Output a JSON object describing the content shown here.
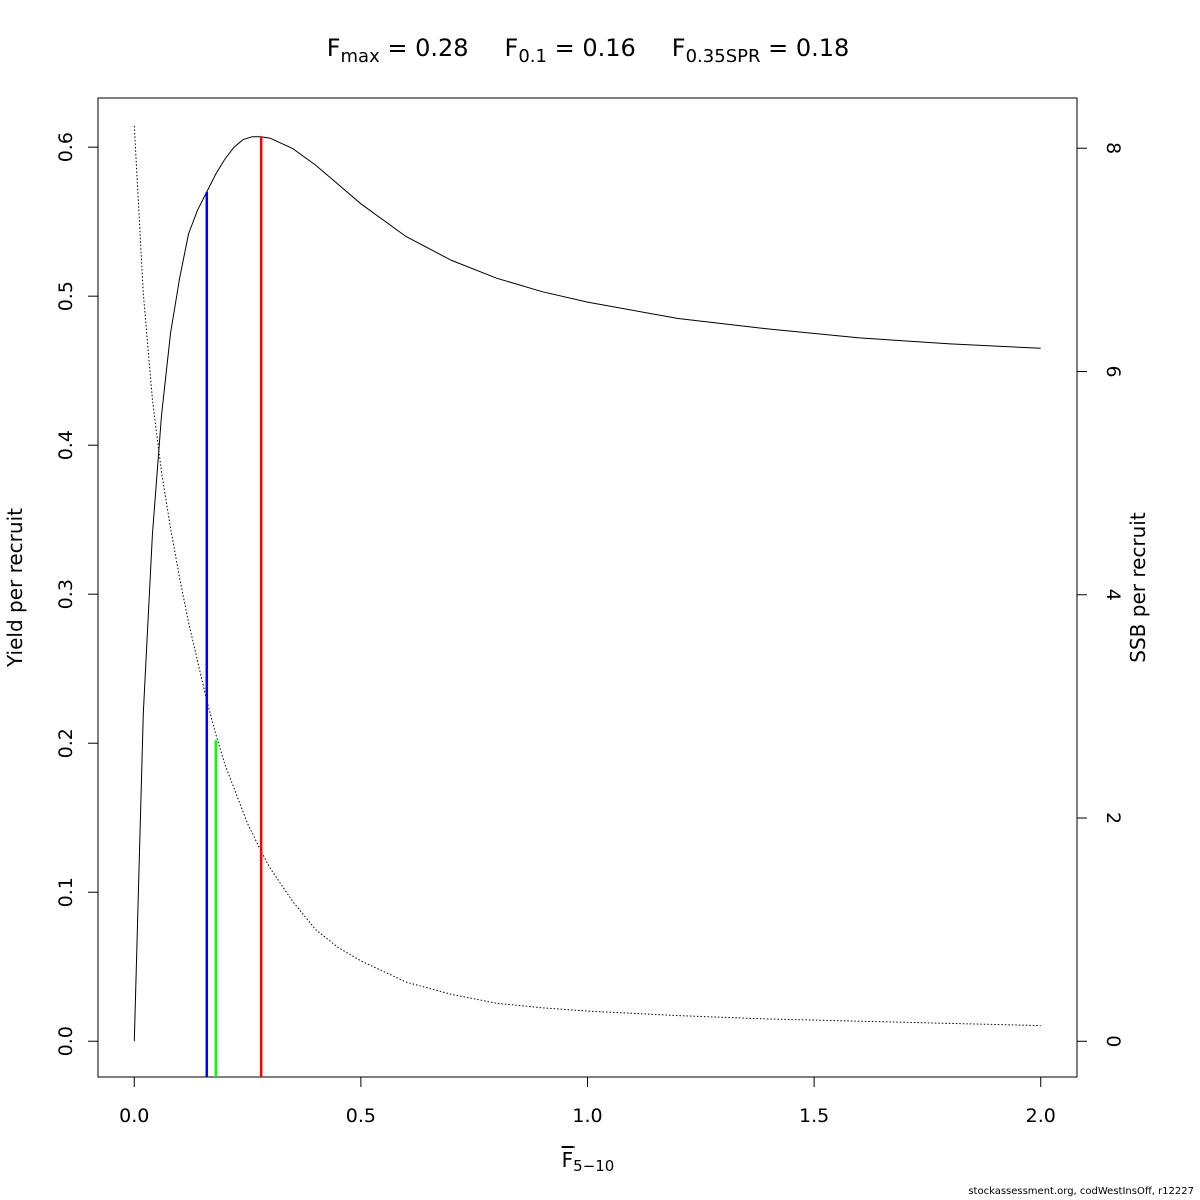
{
  "chart_data": {
    "type": "line",
    "title": {
      "parts": [
        {
          "symbol": "F",
          "subscript": "max",
          "value": "0.28"
        },
        {
          "symbol": "F",
          "subscript": "0.1",
          "value": "0.16"
        },
        {
          "symbol": "F",
          "subscript": "0.35SPR",
          "value": "0.18"
        }
      ]
    },
    "xlabel": {
      "symbol": "F",
      "subscript": "5−10",
      "overline": true
    },
    "ylabel_left": "Yield per recruit",
    "ylabel_right": "SSB per recruit",
    "xlim": [
      -0.08,
      2.08
    ],
    "ylim_left": [
      -0.024,
      0.633
    ],
    "ylim_right": [
      -0.32,
      8.45
    ],
    "x_ticks": [
      0.0,
      0.5,
      1.0,
      1.5,
      2.0
    ],
    "x_tick_labels": [
      "0.0",
      "0.5",
      "1.0",
      "1.5",
      "2.0"
    ],
    "y_left_ticks": [
      0.0,
      0.1,
      0.2,
      0.3,
      0.4,
      0.5,
      0.6
    ],
    "y_left_tick_labels": [
      "0.0",
      "0.1",
      "0.2",
      "0.3",
      "0.4",
      "0.5",
      "0.6"
    ],
    "y_right_ticks": [
      0,
      2,
      4,
      6,
      8
    ],
    "y_right_tick_labels": [
      "0",
      "2",
      "4",
      "6",
      "8"
    ],
    "grid": false,
    "series": [
      {
        "axis": "left",
        "style": "solid",
        "color": "#000000",
        "x": [
          0.0,
          0.02,
          0.04,
          0.06,
          0.08,
          0.1,
          0.12,
          0.14,
          0.16,
          0.18,
          0.2,
          0.22,
          0.24,
          0.26,
          0.28,
          0.3,
          0.35,
          0.4,
          0.45,
          0.5,
          0.6,
          0.7,
          0.8,
          0.9,
          1.0,
          1.2,
          1.4,
          1.6,
          1.8,
          2.0
        ],
        "y": [
          0.0,
          0.22,
          0.34,
          0.42,
          0.475,
          0.512,
          0.542,
          0.558,
          0.57,
          0.582,
          0.592,
          0.6,
          0.605,
          0.607,
          0.607,
          0.606,
          0.599,
          0.588,
          0.575,
          0.562,
          0.54,
          0.524,
          0.512,
          0.503,
          0.496,
          0.485,
          0.478,
          0.472,
          0.468,
          0.465
        ]
      },
      {
        "axis": "right",
        "style": "dotted",
        "color": "#000000",
        "x": [
          0.0,
          0.02,
          0.04,
          0.06,
          0.08,
          0.1,
          0.12,
          0.14,
          0.16,
          0.18,
          0.2,
          0.25,
          0.28,
          0.3,
          0.35,
          0.4,
          0.45,
          0.5,
          0.6,
          0.7,
          0.8,
          0.9,
          1.0,
          1.2,
          1.4,
          1.6,
          1.8,
          2.0
        ],
        "y": [
          8.2,
          6.7,
          5.75,
          5.1,
          4.6,
          4.15,
          3.75,
          3.4,
          3.05,
          2.75,
          2.48,
          1.95,
          1.7,
          1.55,
          1.25,
          1.0,
          0.84,
          0.72,
          0.53,
          0.42,
          0.34,
          0.3,
          0.27,
          0.23,
          0.2,
          0.18,
          0.16,
          0.14
        ]
      }
    ],
    "reference_lines": [
      {
        "name": "Fmax",
        "x": 0.28,
        "y_top": 0.607,
        "color": "#ff0000"
      },
      {
        "name": "F0.1",
        "x": 0.16,
        "y_top": 0.57,
        "color": "#0000ff"
      },
      {
        "name": "F0.35SPR",
        "x": 0.18,
        "y_top": 0.202,
        "color": "#00ff00"
      }
    ]
  },
  "footer_text": "stockassessment.org, codWestInsOff, r12227"
}
